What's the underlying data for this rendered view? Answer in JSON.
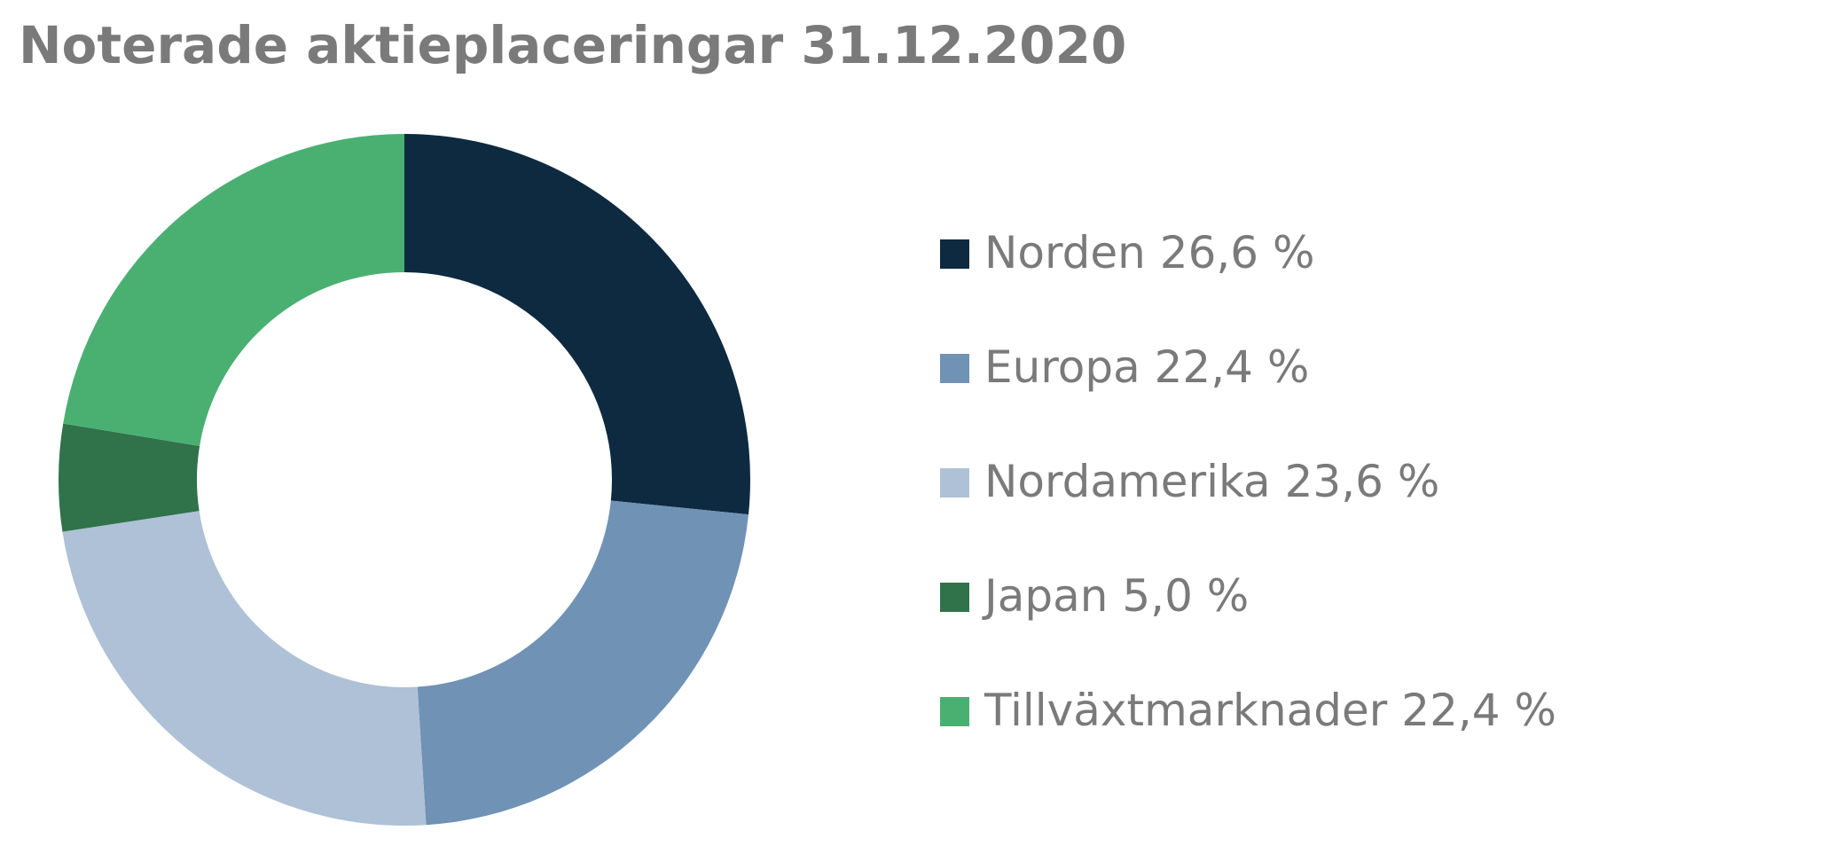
{
  "chart_data": {
    "type": "donut",
    "title": "Noterade aktieplaceringar 31.12.2020",
    "categories": [
      "Norden",
      "Europa",
      "Nordamerika",
      "Japan",
      "Tillväxtmarknader"
    ],
    "values": [
      26.6,
      22.4,
      23.6,
      5.0,
      22.4
    ],
    "value_labels": [
      "26,6 %",
      "22,4 %",
      "23,6 %",
      "5,0 %",
      "22,4 %"
    ],
    "colors": [
      "#0e2a40",
      "#7092b5",
      "#aec1d6",
      "#307249",
      "#4ab072"
    ],
    "legend": "right"
  }
}
